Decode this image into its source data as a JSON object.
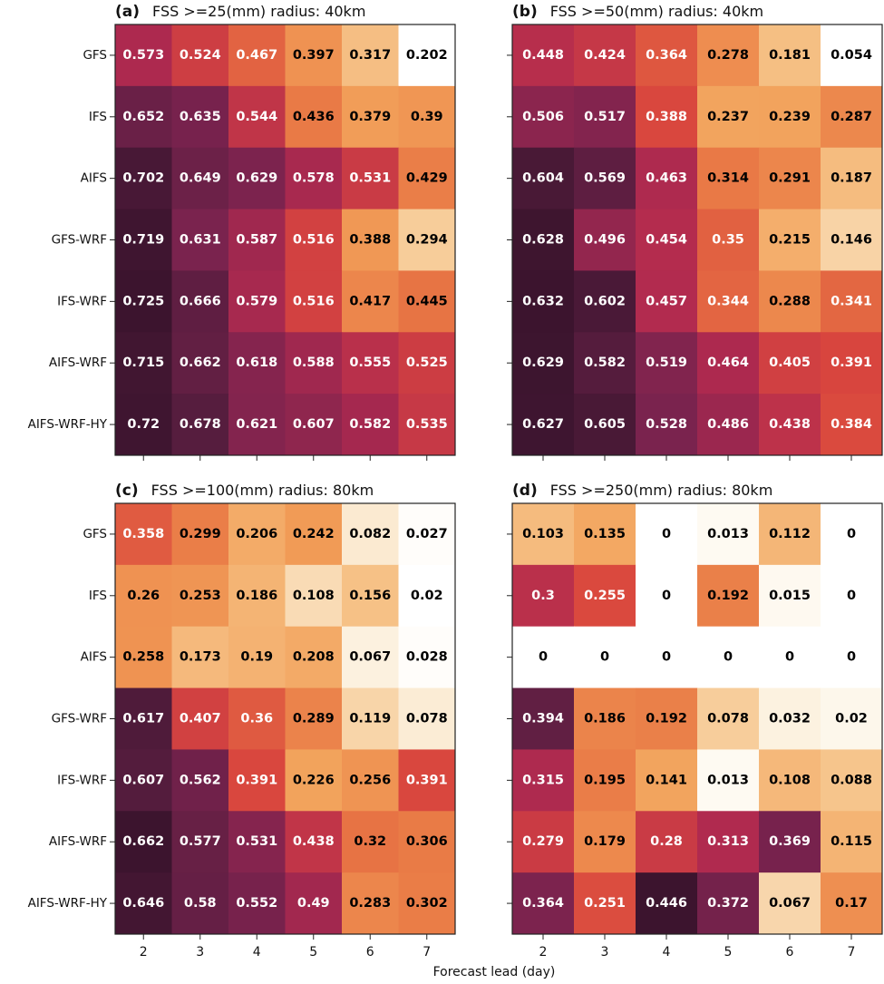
{
  "figure": {
    "xlabel": "Forecast lead (day)",
    "colormap": "rocket_r (per-panel normalization)"
  },
  "chart_data": [
    {
      "type": "heatmap",
      "panel": "(a)",
      "title": "FSS >=25(mm) radius: 40km",
      "x": [
        "2",
        "3",
        "4",
        "5",
        "6",
        "7"
      ],
      "y": [
        "GFS",
        "IFS",
        "AIFS",
        "GFS-WRF",
        "IFS-WRF",
        "AIFS-WRF",
        "AIFS-WRF-HY"
      ],
      "values": [
        [
          0.573,
          0.524,
          0.467,
          0.397,
          0.317,
          0.202
        ],
        [
          0.652,
          0.635,
          0.544,
          0.436,
          0.379,
          0.39
        ],
        [
          0.702,
          0.649,
          0.629,
          0.578,
          0.531,
          0.429
        ],
        [
          0.719,
          0.631,
          0.587,
          0.516,
          0.388,
          0.294
        ],
        [
          0.725,
          0.666,
          0.579,
          0.516,
          0.417,
          0.445
        ],
        [
          0.715,
          0.662,
          0.618,
          0.588,
          0.555,
          0.525
        ],
        [
          0.72,
          0.678,
          0.621,
          0.607,
          0.582,
          0.535
        ]
      ],
      "show_ylabels": true,
      "show_xlabels": false
    },
    {
      "type": "heatmap",
      "panel": "(b)",
      "title": "FSS >=50(mm) radius: 40km",
      "x": [
        "2",
        "3",
        "4",
        "5",
        "6",
        "7"
      ],
      "y": [
        "GFS",
        "IFS",
        "AIFS",
        "GFS-WRF",
        "IFS-WRF",
        "AIFS-WRF",
        "AIFS-WRF-HY"
      ],
      "values": [
        [
          0.448,
          0.424,
          0.364,
          0.278,
          0.181,
          0.054
        ],
        [
          0.506,
          0.517,
          0.388,
          0.237,
          0.239,
          0.287
        ],
        [
          0.604,
          0.569,
          0.463,
          0.314,
          0.291,
          0.187
        ],
        [
          0.628,
          0.496,
          0.454,
          0.35,
          0.215,
          0.146
        ],
        [
          0.632,
          0.602,
          0.457,
          0.344,
          0.288,
          0.341
        ],
        [
          0.629,
          0.582,
          0.519,
          0.464,
          0.405,
          0.391
        ],
        [
          0.627,
          0.605,
          0.528,
          0.486,
          0.438,
          0.384
        ]
      ],
      "show_ylabels": false,
      "show_xlabels": false
    },
    {
      "type": "heatmap",
      "panel": "(c)",
      "title": "FSS >=100(mm) radius: 80km",
      "x": [
        "2",
        "3",
        "4",
        "5",
        "6",
        "7"
      ],
      "y": [
        "GFS",
        "IFS",
        "AIFS",
        "GFS-WRF",
        "IFS-WRF",
        "AIFS-WRF",
        "AIFS-WRF-HY"
      ],
      "values": [
        [
          0.358,
          0.299,
          0.206,
          0.242,
          0.082,
          0.027
        ],
        [
          0.26,
          0.253,
          0.186,
          0.108,
          0.156,
          0.02
        ],
        [
          0.258,
          0.173,
          0.19,
          0.208,
          0.067,
          0.028
        ],
        [
          0.617,
          0.407,
          0.36,
          0.289,
          0.119,
          0.078
        ],
        [
          0.607,
          0.562,
          0.391,
          0.226,
          0.256,
          0.391
        ],
        [
          0.662,
          0.577,
          0.531,
          0.438,
          0.32,
          0.306
        ],
        [
          0.646,
          0.58,
          0.552,
          0.49,
          0.283,
          0.302
        ]
      ],
      "show_ylabels": true,
      "show_xlabels": true
    },
    {
      "type": "heatmap",
      "panel": "(d)",
      "title": "FSS >=250(mm) radius: 80km",
      "x": [
        "2",
        "3",
        "4",
        "5",
        "6",
        "7"
      ],
      "y": [
        "GFS",
        "IFS",
        "AIFS",
        "GFS-WRF",
        "IFS-WRF",
        "AIFS-WRF",
        "AIFS-WRF-HY"
      ],
      "values": [
        [
          0.103,
          0.135,
          0,
          0.013,
          0.112,
          0
        ],
        [
          0.3,
          0.255,
          0,
          0.192,
          0.015,
          0
        ],
        [
          0,
          0,
          0,
          0,
          0,
          0
        ],
        [
          0.394,
          0.186,
          0.192,
          0.078,
          0.032,
          0.02
        ],
        [
          0.315,
          0.195,
          0.141,
          0.013,
          0.108,
          0.088
        ],
        [
          0.279,
          0.179,
          0.28,
          0.313,
          0.369,
          0.115
        ],
        [
          0.364,
          0.251,
          0.446,
          0.372,
          0.067,
          0.17
        ]
      ],
      "show_ylabels": false,
      "show_xlabels": true
    }
  ]
}
